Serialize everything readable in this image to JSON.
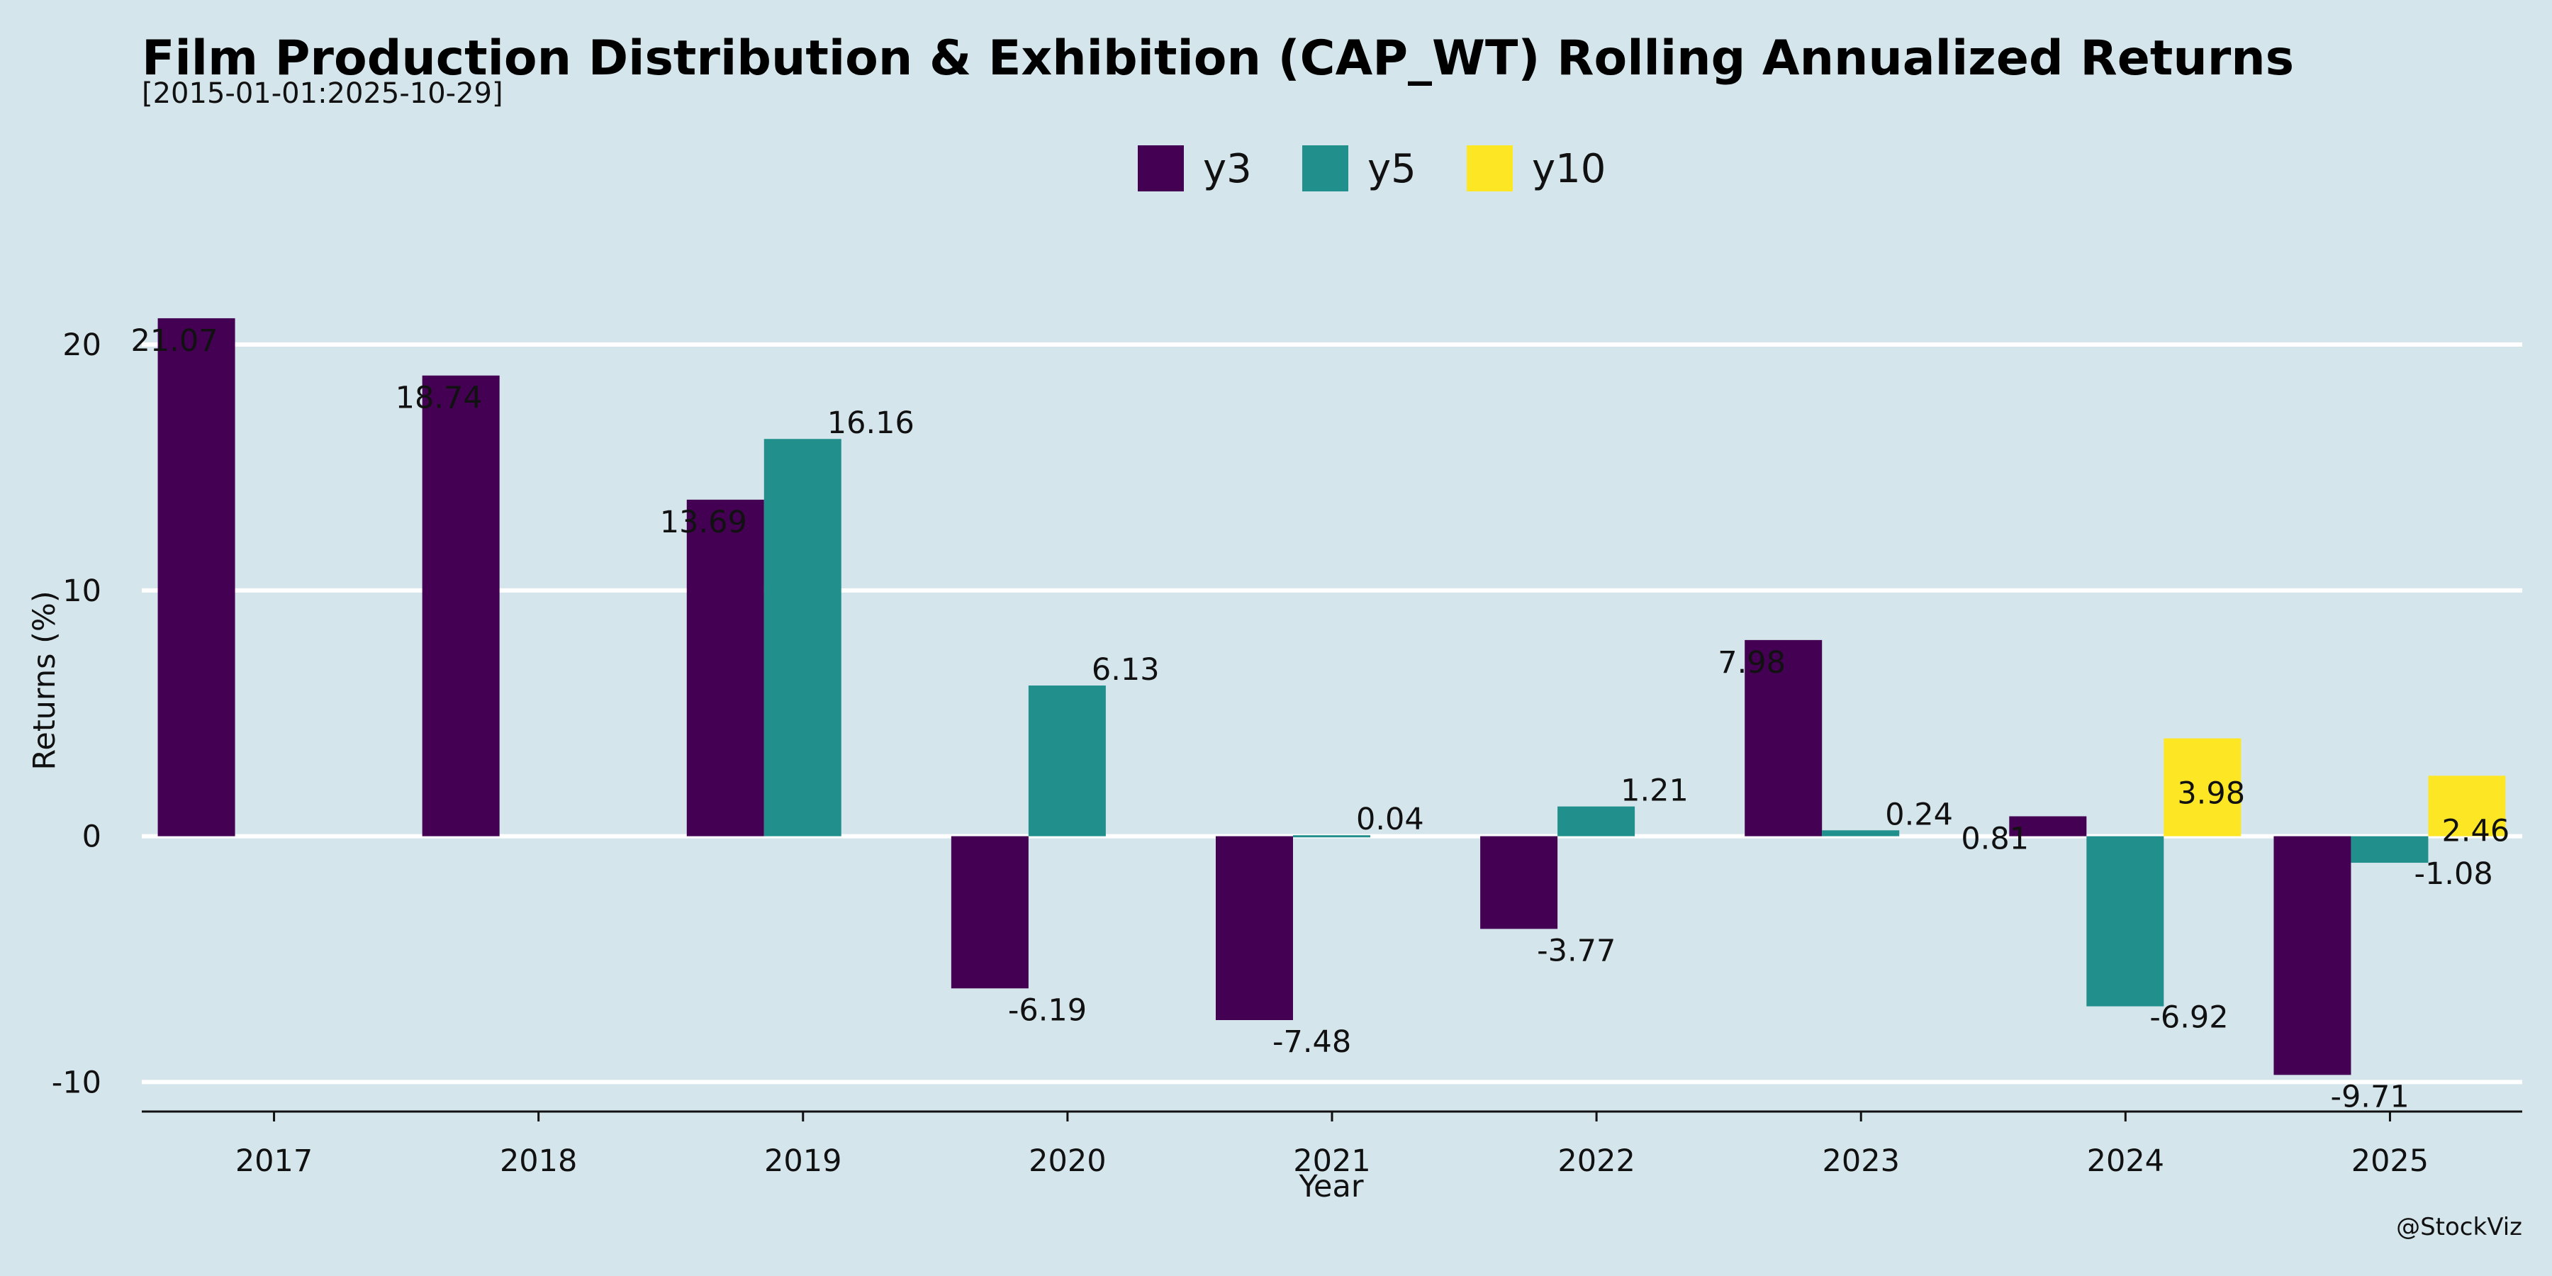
{
  "chart_data": {
    "type": "bar",
    "title": "Film Production Distribution & Exhibition (CAP_WT) Rolling Annualized Returns",
    "subtitle": "[2015-01-01:2025-10-29]",
    "xlabel": "Year",
    "ylabel": "Returns (%)",
    "categories": [
      "2017",
      "2018",
      "2019",
      "2020",
      "2021",
      "2022",
      "2023",
      "2024",
      "2025"
    ],
    "series": [
      {
        "name": "y3",
        "color": "#440154",
        "values": [
          21.07,
          18.74,
          13.69,
          -6.19,
          -7.48,
          -3.77,
          7.98,
          0.81,
          -9.71
        ]
      },
      {
        "name": "y5",
        "color": "#21908d",
        "values": [
          null,
          null,
          16.16,
          6.13,
          0.04,
          1.21,
          0.24,
          -6.92,
          -1.08
        ]
      },
      {
        "name": "y10",
        "color": "#fde725",
        "values": [
          null,
          null,
          null,
          null,
          null,
          null,
          null,
          3.98,
          2.46
        ]
      }
    ],
    "ylim": [
      -11.2,
      24.5
    ],
    "yticks": [
      -10,
      0,
      10,
      20
    ],
    "ytick_labels": [
      "-10",
      "0",
      "10",
      "20"
    ],
    "grid": true,
    "legend_position": "top-center",
    "background": "#d5e5ec",
    "credit": "@StockViz"
  }
}
